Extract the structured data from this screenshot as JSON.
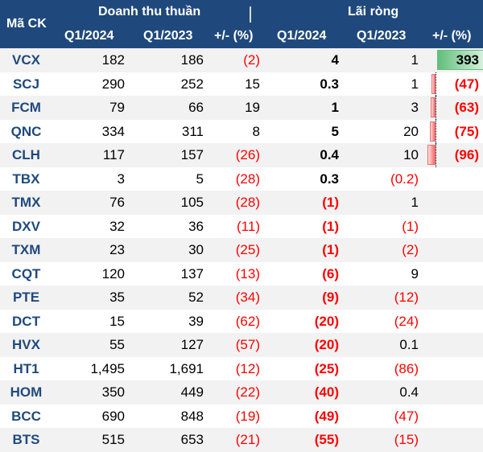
{
  "header": {
    "code_label": "Mã CK",
    "revenue_label": "Doanh thu thuần",
    "profit_label": "Lãi ròng",
    "col_q1_2024": "Q1/2024",
    "col_q1_2023": "Q1/2023",
    "col_change": "+/- (%)"
  },
  "colors": {
    "header_bg": "#1F497D",
    "code_text": "#1F497D",
    "negative_text": "#FF0000",
    "positive_bar": "#63BE7B",
    "negative_bar": "#F8696B",
    "band": "#F2F2F2"
  },
  "chart_data": {
    "type": "table",
    "columns": [
      "Mã CK",
      "Doanh thu thuần Q1/2024",
      "Doanh thu thuần Q1/2023",
      "Doanh thu thuần +/- (%)",
      "Lãi ròng Q1/2024",
      "Lãi ròng Q1/2023",
      "Lãi ròng +/- (%)"
    ],
    "rows": [
      {
        "code": "VCX",
        "rev_2024": "182",
        "rev_2023": "186",
        "rev_chg": "(2)",
        "np_2024": "4",
        "np_2023": "1",
        "np_chg": "393",
        "np_chg_value": 393
      },
      {
        "code": "SCJ",
        "rev_2024": "290",
        "rev_2023": "252",
        "rev_chg": "15",
        "np_2024": "0.3",
        "np_2023": "1",
        "np_chg": "(47)",
        "np_chg_value": -47
      },
      {
        "code": "FCM",
        "rev_2024": "79",
        "rev_2023": "66",
        "rev_chg": "19",
        "np_2024": "1",
        "np_2023": "3",
        "np_chg": "(63)",
        "np_chg_value": -63
      },
      {
        "code": "QNC",
        "rev_2024": "334",
        "rev_2023": "311",
        "rev_chg": "8",
        "np_2024": "5",
        "np_2023": "20",
        "np_chg": "(75)",
        "np_chg_value": -75
      },
      {
        "code": "CLH",
        "rev_2024": "117",
        "rev_2023": "157",
        "rev_chg": "(26)",
        "np_2024": "0.4",
        "np_2023": "10",
        "np_chg": "(96)",
        "np_chg_value": -96
      },
      {
        "code": "TBX",
        "rev_2024": "3",
        "rev_2023": "5",
        "rev_chg": "(28)",
        "np_2024": "0.3",
        "np_2023": "(0.2)",
        "np_chg": "",
        "np_chg_value": null
      },
      {
        "code": "TMX",
        "rev_2024": "76",
        "rev_2023": "105",
        "rev_chg": "(28)",
        "np_2024": "(1)",
        "np_2023": "1",
        "np_chg": "",
        "np_chg_value": null
      },
      {
        "code": "DXV",
        "rev_2024": "32",
        "rev_2023": "36",
        "rev_chg": "(11)",
        "np_2024": "(1)",
        "np_2023": "(1)",
        "np_chg": "",
        "np_chg_value": null
      },
      {
        "code": "TXM",
        "rev_2024": "23",
        "rev_2023": "30",
        "rev_chg": "(25)",
        "np_2024": "(1)",
        "np_2023": "(2)",
        "np_chg": "",
        "np_chg_value": null
      },
      {
        "code": "CQT",
        "rev_2024": "120",
        "rev_2023": "137",
        "rev_chg": "(13)",
        "np_2024": "(6)",
        "np_2023": "9",
        "np_chg": "",
        "np_chg_value": null
      },
      {
        "code": "PTE",
        "rev_2024": "35",
        "rev_2023": "52",
        "rev_chg": "(34)",
        "np_2024": "(9)",
        "np_2023": "(12)",
        "np_chg": "",
        "np_chg_value": null
      },
      {
        "code": "DCT",
        "rev_2024": "15",
        "rev_2023": "39",
        "rev_chg": "(62)",
        "np_2024": "(20)",
        "np_2023": "(24)",
        "np_chg": "",
        "np_chg_value": null
      },
      {
        "code": "HVX",
        "rev_2024": "55",
        "rev_2023": "127",
        "rev_chg": "(57)",
        "np_2024": "(20)",
        "np_2023": "0.1",
        "np_chg": "",
        "np_chg_value": null
      },
      {
        "code": "HT1",
        "rev_2024": "1,495",
        "rev_2023": "1,691",
        "rev_chg": "(12)",
        "np_2024": "(25)",
        "np_2023": "(86)",
        "np_chg": "",
        "np_chg_value": null
      },
      {
        "code": "HOM",
        "rev_2024": "350",
        "rev_2023": "449",
        "rev_chg": "(22)",
        "np_2024": "(40)",
        "np_2023": "0.4",
        "np_chg": "",
        "np_chg_value": null
      },
      {
        "code": "BCC",
        "rev_2024": "690",
        "rev_2023": "848",
        "rev_chg": "(19)",
        "np_2024": "(49)",
        "np_2023": "(47)",
        "np_chg": "",
        "np_chg_value": null
      },
      {
        "code": "BTS",
        "rev_2024": "515",
        "rev_2023": "653",
        "rev_chg": "(21)",
        "np_2024": "(55)",
        "np_2023": "(15)",
        "np_chg": "",
        "np_chg_value": null
      }
    ]
  }
}
